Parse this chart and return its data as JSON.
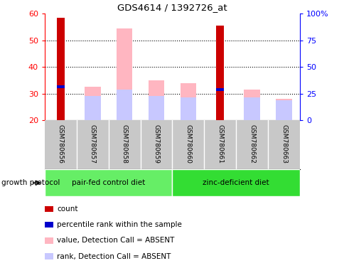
{
  "title": "GDS4614 / 1392726_at",
  "samples": [
    "GSM780656",
    "GSM780657",
    "GSM780658",
    "GSM780659",
    "GSM780660",
    "GSM780661",
    "GSM780662",
    "GSM780663"
  ],
  "count_values": [
    58.5,
    null,
    null,
    null,
    null,
    55.5,
    null,
    null
  ],
  "percentile_values": [
    32.5,
    null,
    null,
    null,
    null,
    31.5,
    null,
    null
  ],
  "value_absent": [
    null,
    32.5,
    54.5,
    35.0,
    34.0,
    null,
    31.5,
    28.0
  ],
  "rank_absent": [
    null,
    29.0,
    31.5,
    29.0,
    28.5,
    null,
    28.5,
    27.5
  ],
  "ylim": [
    20,
    60
  ],
  "yticks": [
    20,
    30,
    40,
    50,
    60
  ],
  "right_ylim": [
    0,
    100
  ],
  "right_yticks": [
    0,
    25,
    50,
    75,
    100
  ],
  "right_yticklabels": [
    "0",
    "25",
    "50",
    "75",
    "100%"
  ],
  "groups": [
    {
      "label": "pair-fed control diet",
      "indices": [
        0,
        1,
        2,
        3
      ],
      "color": "#66EE66"
    },
    {
      "label": "zinc-deficient diet",
      "indices": [
        4,
        5,
        6,
        7
      ],
      "color": "#33DD33"
    }
  ],
  "group_label": "growth protocol",
  "count_color": "#CC0000",
  "percentile_color": "#0000CC",
  "value_absent_color": "#FFB6C1",
  "rank_absent_color": "#C8C8FF",
  "sample_area_color": "#C8C8C8"
}
